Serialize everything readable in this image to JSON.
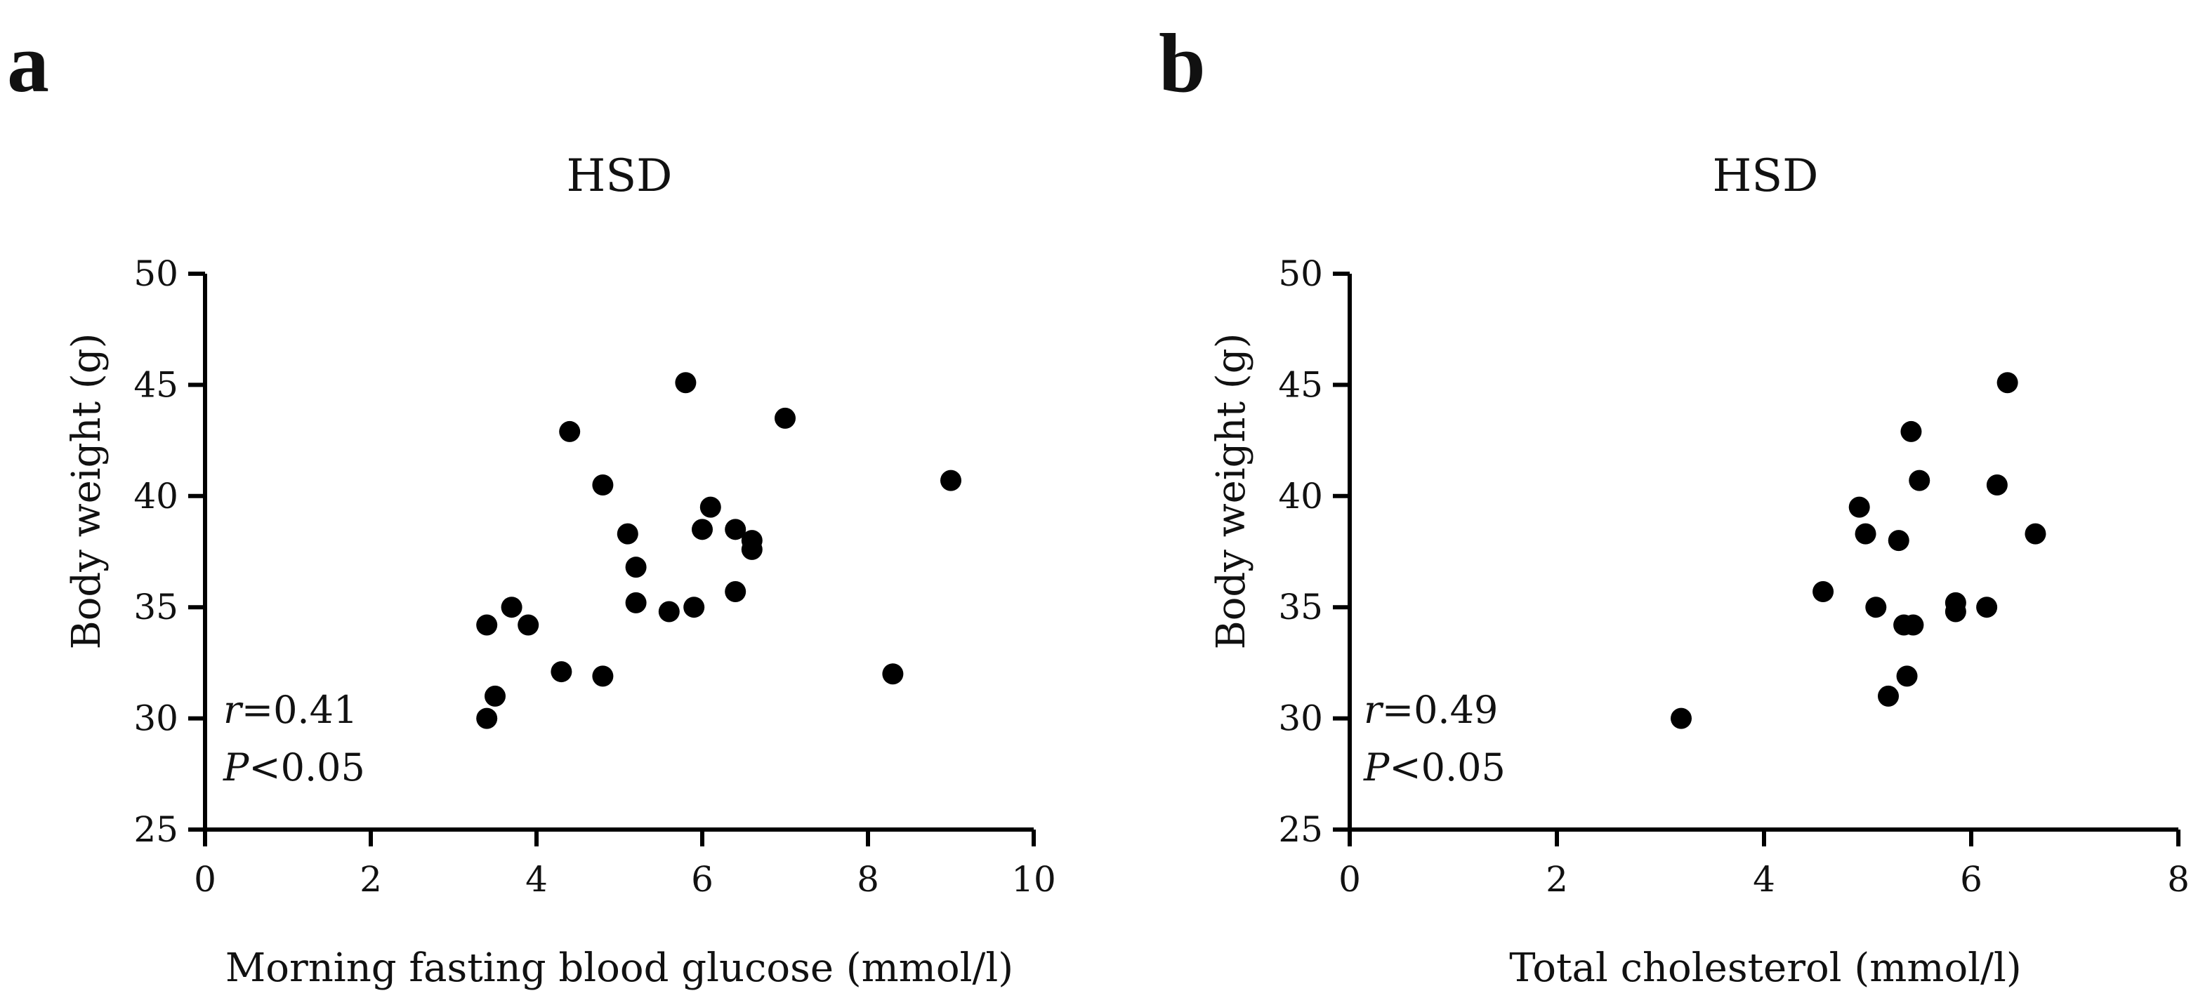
{
  "chart_data": [
    {
      "panel": "a",
      "type": "scatter",
      "title": "HSD",
      "xlabel": "Morning fasting blood glucose (mmol/l)",
      "ylabel": "Body weight (g)",
      "xlim": [
        0,
        10
      ],
      "ylim": [
        25,
        50
      ],
      "xticks": [
        0,
        2,
        4,
        6,
        8,
        10
      ],
      "yticks": [
        25,
        30,
        35,
        40,
        45,
        50
      ],
      "grid": false,
      "annotation": {
        "r_symbol": "r",
        "r_value": "=0.41",
        "p_symbol": "P",
        "p_value": "<0.05"
      },
      "series": [
        {
          "name": "HSD",
          "color": "#000000",
          "points": [
            {
              "x": 3.4,
              "y": 30.0
            },
            {
              "x": 3.4,
              "y": 34.2
            },
            {
              "x": 3.5,
              "y": 31.0
            },
            {
              "x": 3.7,
              "y": 35.0
            },
            {
              "x": 3.9,
              "y": 34.2
            },
            {
              "x": 4.3,
              "y": 32.1
            },
            {
              "x": 4.4,
              "y": 42.9
            },
            {
              "x": 4.8,
              "y": 40.5
            },
            {
              "x": 4.8,
              "y": 31.9
            },
            {
              "x": 5.1,
              "y": 38.3
            },
            {
              "x": 5.2,
              "y": 36.8
            },
            {
              "x": 5.2,
              "y": 35.2
            },
            {
              "x": 5.6,
              "y": 34.8
            },
            {
              "x": 5.8,
              "y": 45.1
            },
            {
              "x": 5.9,
              "y": 35.0
            },
            {
              "x": 6.0,
              "y": 38.5
            },
            {
              "x": 6.1,
              "y": 39.5
            },
            {
              "x": 6.4,
              "y": 38.5
            },
            {
              "x": 6.4,
              "y": 35.7
            },
            {
              "x": 6.6,
              "y": 38.0
            },
            {
              "x": 6.6,
              "y": 37.6
            },
            {
              "x": 7.0,
              "y": 43.5
            },
            {
              "x": 8.3,
              "y": 32.0
            },
            {
              "x": 9.0,
              "y": 40.7
            }
          ]
        }
      ]
    },
    {
      "panel": "b",
      "type": "scatter",
      "title": "HSD",
      "xlabel": "Total cholesterol (mmol/l)",
      "ylabel": "Body weight (g)",
      "xlim": [
        0,
        8
      ],
      "ylim": [
        25,
        50
      ],
      "xticks": [
        0,
        2,
        4,
        6,
        8
      ],
      "yticks": [
        25,
        30,
        35,
        40,
        45,
        50
      ],
      "grid": false,
      "annotation": {
        "r_symbol": "r",
        "r_value": "=0.49",
        "p_symbol": "P",
        "p_value": "<0.05"
      },
      "series": [
        {
          "name": "HSD",
          "color": "#000000",
          "points": [
            {
              "x": 3.2,
              "y": 30.0
            },
            {
              "x": 4.57,
              "y": 35.7
            },
            {
              "x": 4.92,
              "y": 39.5
            },
            {
              "x": 4.98,
              "y": 38.3
            },
            {
              "x": 5.08,
              "y": 35.0
            },
            {
              "x": 5.2,
              "y": 31.0
            },
            {
              "x": 5.3,
              "y": 38.0
            },
            {
              "x": 5.35,
              "y": 34.2
            },
            {
              "x": 5.38,
              "y": 31.9
            },
            {
              "x": 5.42,
              "y": 42.9
            },
            {
              "x": 5.44,
              "y": 34.2
            },
            {
              "x": 5.5,
              "y": 40.7
            },
            {
              "x": 5.85,
              "y": 35.2
            },
            {
              "x": 5.85,
              "y": 34.8
            },
            {
              "x": 6.15,
              "y": 35.0
            },
            {
              "x": 6.25,
              "y": 40.5
            },
            {
              "x": 6.35,
              "y": 45.1
            },
            {
              "x": 6.62,
              "y": 38.3
            }
          ]
        }
      ]
    }
  ]
}
